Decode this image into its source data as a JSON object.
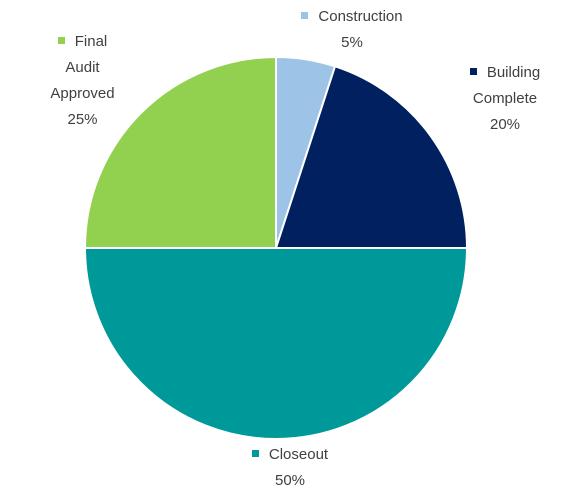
{
  "chart_data": {
    "type": "pie",
    "categories": [
      "Construction",
      "Building Complete",
      "Closeout",
      "Final Audit Approved"
    ],
    "values": [
      5,
      20,
      50,
      25
    ],
    "value_labels": [
      "5%",
      "20%",
      "50%",
      "25%"
    ],
    "colors": [
      "#9dc3e6",
      "#002060",
      "#009999",
      "#92d050"
    ]
  }
}
